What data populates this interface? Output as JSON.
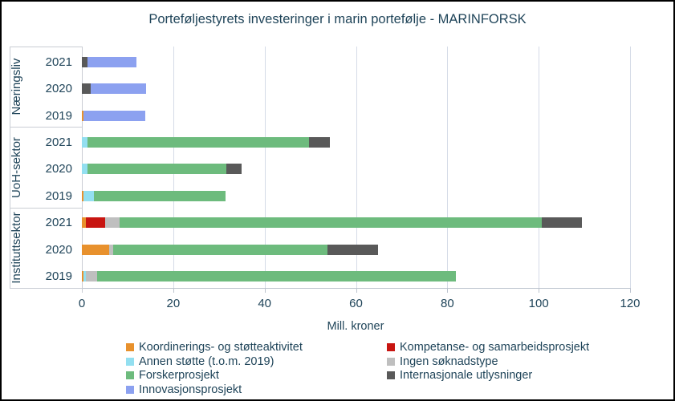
{
  "chart_data": {
    "type": "bar",
    "subtype": "horizontal_stacked",
    "title": "Porteføljestyrets investeringer i marin portefølje - MARINFORSK",
    "xlabel": "Mill. kroner",
    "xlim": [
      0,
      120
    ],
    "xticks": [
      "0",
      "20",
      "40",
      "60",
      "80",
      "100",
      "120"
    ],
    "grid": true,
    "legend_position": "bottom",
    "groups": [
      {
        "label": "Næringsliv",
        "years": [
          "2021",
          "2020",
          "2019"
        ]
      },
      {
        "label": "UoH-sektor",
        "years": [
          "2021",
          "2020",
          "2019"
        ]
      },
      {
        "label": "Instituttsektor",
        "years": [
          "2021",
          "2020",
          "2019"
        ]
      }
    ],
    "row_order_note": "values arrays are ordered: Næringsliv 2021,2020,2019; UoH-sektor 2021,2020,2019; Instituttsektor 2021,2020,2019",
    "series": [
      {
        "name": "Koordinerings- og støtteaktivitet",
        "color": "#E8912D",
        "values": [
          0,
          0,
          0.4,
          0,
          0,
          0.4,
          0.9,
          6.0,
          0.4
        ]
      },
      {
        "name": "Kompetanse- og samarbeidsprosjekt",
        "color": "#C81511",
        "values": [
          0,
          0,
          0,
          0,
          0,
          0,
          4.2,
          0,
          0
        ]
      },
      {
        "name": "Annen støtte (t.o.m. 2019)",
        "color": "#93DFF0",
        "values": [
          0,
          0,
          0,
          1.2,
          1.2,
          2.3,
          0,
          0,
          0.4
        ]
      },
      {
        "name": "Ingen søknadstype",
        "color": "#BFBFBF",
        "values": [
          0,
          0,
          0,
          0,
          0,
          0,
          3.2,
          0.9,
          2.5
        ]
      },
      {
        "name": "Forskerprosjekt",
        "color": "#6DBB7D",
        "values": [
          0,
          0,
          0,
          48.5,
          30.4,
          28.8,
          92.4,
          46.9,
          78.6
        ]
      },
      {
        "name": "Internasjonale utlysninger",
        "color": "#595959",
        "values": [
          1.2,
          2.0,
          0,
          4.6,
          3.4,
          0,
          8.8,
          11.0,
          0
        ]
      },
      {
        "name": "Innovasjonsprosjekt",
        "color": "#8CA1F0",
        "values": [
          10.8,
          12.0,
          13.5,
          0,
          0,
          0,
          0,
          0,
          0
        ]
      }
    ],
    "legend_columns": [
      [
        0,
        2,
        4,
        6
      ],
      [
        1,
        3,
        5
      ]
    ]
  },
  "colors": {
    "text": "#1F4459",
    "gridline": "#D5DBE7",
    "axis_line": "#BCC3CE",
    "category_line": "#C9CDD4",
    "frame_border": "#000000"
  }
}
